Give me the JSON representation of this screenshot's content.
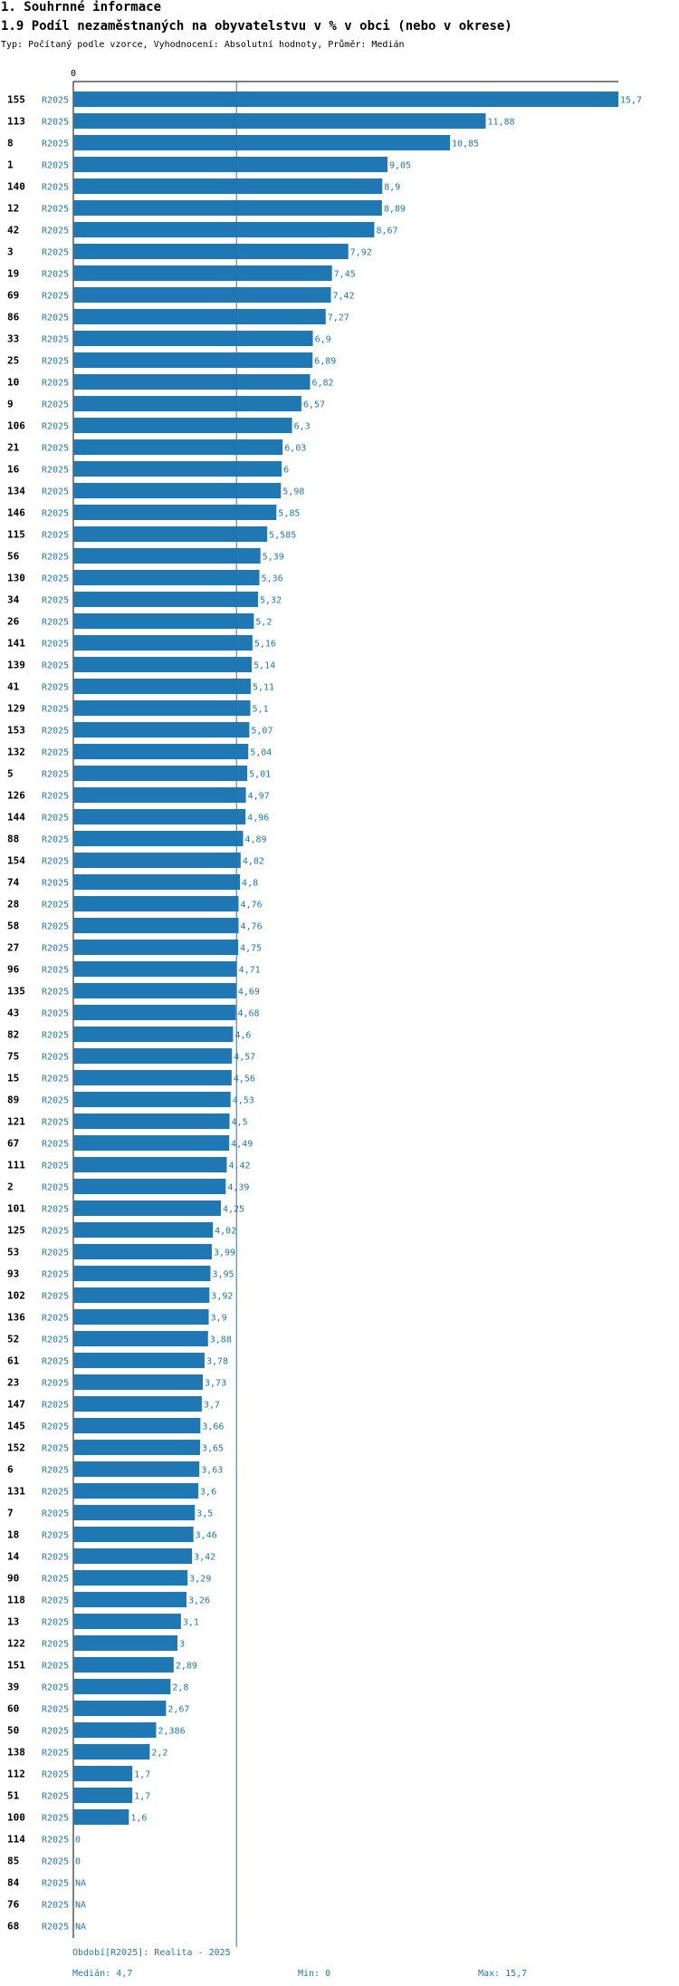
{
  "header": {
    "section": "1. Souhrnné informace",
    "title": "1.9 Podíl nezaměstnaných na obyvatelstvu v % v obci (nebo v okrese)",
    "subtitle": "Typ: Počítaný podle vzorce, Vyhodnocení: Absolutní hodnoty, Průměr: Medián"
  },
  "chart_data": {
    "type": "bar",
    "orientation": "horizontal",
    "title": "1.9 Podíl nezaměstnaných na obyvatelstvu v % v obci (nebo v okrese)",
    "axis_label": "0",
    "xlim": [
      0,
      15.7
    ],
    "median": 4.7,
    "bar_color": "#1f77b4",
    "period": "R2025",
    "rows": [
      {
        "id": "155",
        "value": 15.7,
        "label": "15,7"
      },
      {
        "id": "113",
        "value": 11.88,
        "label": "11,88"
      },
      {
        "id": "8",
        "value": 10.85,
        "label": "10,85"
      },
      {
        "id": "1",
        "value": 9.05,
        "label": "9,05"
      },
      {
        "id": "140",
        "value": 8.9,
        "label": "8,9"
      },
      {
        "id": "12",
        "value": 8.89,
        "label": "8,89"
      },
      {
        "id": "42",
        "value": 8.67,
        "label": "8,67"
      },
      {
        "id": "3",
        "value": 7.92,
        "label": "7,92"
      },
      {
        "id": "19",
        "value": 7.45,
        "label": "7,45"
      },
      {
        "id": "69",
        "value": 7.42,
        "label": "7,42"
      },
      {
        "id": "86",
        "value": 7.27,
        "label": "7,27"
      },
      {
        "id": "33",
        "value": 6.9,
        "label": "6,9"
      },
      {
        "id": "25",
        "value": 6.89,
        "label": "6,89"
      },
      {
        "id": "10",
        "value": 6.82,
        "label": "6,82"
      },
      {
        "id": "9",
        "value": 6.57,
        "label": "6,57"
      },
      {
        "id": "106",
        "value": 6.3,
        "label": "6,3"
      },
      {
        "id": "21",
        "value": 6.03,
        "label": "6,03"
      },
      {
        "id": "16",
        "value": 6,
        "label": "6"
      },
      {
        "id": "134",
        "value": 5.98,
        "label": "5,98"
      },
      {
        "id": "146",
        "value": 5.85,
        "label": "5,85"
      },
      {
        "id": "115",
        "value": 5.585,
        "label": "5,585"
      },
      {
        "id": "56",
        "value": 5.39,
        "label": "5,39"
      },
      {
        "id": "130",
        "value": 5.36,
        "label": "5,36"
      },
      {
        "id": "34",
        "value": 5.32,
        "label": "5,32"
      },
      {
        "id": "26",
        "value": 5.2,
        "label": "5,2"
      },
      {
        "id": "141",
        "value": 5.16,
        "label": "5,16"
      },
      {
        "id": "139",
        "value": 5.14,
        "label": "5,14"
      },
      {
        "id": "41",
        "value": 5.11,
        "label": "5,11"
      },
      {
        "id": "129",
        "value": 5.1,
        "label": "5,1"
      },
      {
        "id": "153",
        "value": 5.07,
        "label": "5,07"
      },
      {
        "id": "132",
        "value": 5.04,
        "label": "5,04"
      },
      {
        "id": "5",
        "value": 5.01,
        "label": "5,01"
      },
      {
        "id": "126",
        "value": 4.97,
        "label": "4,97"
      },
      {
        "id": "144",
        "value": 4.96,
        "label": "4,96"
      },
      {
        "id": "88",
        "value": 4.89,
        "label": "4,89"
      },
      {
        "id": "154",
        "value": 4.82,
        "label": "4,82"
      },
      {
        "id": "74",
        "value": 4.8,
        "label": "4,8"
      },
      {
        "id": "28",
        "value": 4.76,
        "label": "4,76"
      },
      {
        "id": "58",
        "value": 4.76,
        "label": "4,76"
      },
      {
        "id": "27",
        "value": 4.75,
        "label": "4,75"
      },
      {
        "id": "96",
        "value": 4.71,
        "label": "4,71"
      },
      {
        "id": "135",
        "value": 4.69,
        "label": "4,69"
      },
      {
        "id": "43",
        "value": 4.68,
        "label": "4,68"
      },
      {
        "id": "82",
        "value": 4.6,
        "label": "4,6"
      },
      {
        "id": "75",
        "value": 4.57,
        "label": "4,57"
      },
      {
        "id": "15",
        "value": 4.56,
        "label": "4,56"
      },
      {
        "id": "89",
        "value": 4.53,
        "label": "4,53"
      },
      {
        "id": "121",
        "value": 4.5,
        "label": "4,5"
      },
      {
        "id": "67",
        "value": 4.49,
        "label": "4,49"
      },
      {
        "id": "111",
        "value": 4.42,
        "label": "4,42"
      },
      {
        "id": "2",
        "value": 4.39,
        "label": "4,39"
      },
      {
        "id": "101",
        "value": 4.25,
        "label": "4,25"
      },
      {
        "id": "125",
        "value": 4.02,
        "label": "4,02"
      },
      {
        "id": "53",
        "value": 3.99,
        "label": "3,99"
      },
      {
        "id": "93",
        "value": 3.95,
        "label": "3,95"
      },
      {
        "id": "102",
        "value": 3.92,
        "label": "3,92"
      },
      {
        "id": "136",
        "value": 3.9,
        "label": "3,9"
      },
      {
        "id": "52",
        "value": 3.88,
        "label": "3,88"
      },
      {
        "id": "61",
        "value": 3.78,
        "label": "3,78"
      },
      {
        "id": "23",
        "value": 3.73,
        "label": "3,73"
      },
      {
        "id": "147",
        "value": 3.7,
        "label": "3,7"
      },
      {
        "id": "145",
        "value": 3.66,
        "label": "3,66"
      },
      {
        "id": "152",
        "value": 3.65,
        "label": "3,65"
      },
      {
        "id": "6",
        "value": 3.63,
        "label": "3,63"
      },
      {
        "id": "131",
        "value": 3.6,
        "label": "3,6"
      },
      {
        "id": "7",
        "value": 3.5,
        "label": "3,5"
      },
      {
        "id": "18",
        "value": 3.46,
        "label": "3,46"
      },
      {
        "id": "14",
        "value": 3.42,
        "label": "3,42"
      },
      {
        "id": "90",
        "value": 3.29,
        "label": "3,29"
      },
      {
        "id": "118",
        "value": 3.26,
        "label": "3,26"
      },
      {
        "id": "13",
        "value": 3.1,
        "label": "3,1"
      },
      {
        "id": "122",
        "value": 3,
        "label": "3"
      },
      {
        "id": "151",
        "value": 2.89,
        "label": "2,89"
      },
      {
        "id": "39",
        "value": 2.8,
        "label": "2,8"
      },
      {
        "id": "60",
        "value": 2.67,
        "label": "2,67"
      },
      {
        "id": "50",
        "value": 2.386,
        "label": "2,386"
      },
      {
        "id": "138",
        "value": 2.2,
        "label": "2,2"
      },
      {
        "id": "112",
        "value": 1.7,
        "label": "1,7"
      },
      {
        "id": "51",
        "value": 1.7,
        "label": "1,7"
      },
      {
        "id": "100",
        "value": 1.6,
        "label": "1,6"
      },
      {
        "id": "114",
        "value": 0,
        "label": "0"
      },
      {
        "id": "85",
        "value": 0,
        "label": "0"
      },
      {
        "id": "84",
        "value": null,
        "label": "NA"
      },
      {
        "id": "76",
        "value": null,
        "label": "NA"
      },
      {
        "id": "68",
        "value": null,
        "label": "NA"
      }
    ]
  },
  "footer": {
    "period": "Období[R2025]: Realita - 2025",
    "median": "Medián: 4,7",
    "min": "Min: 0",
    "max": "Max: 15,7"
  }
}
